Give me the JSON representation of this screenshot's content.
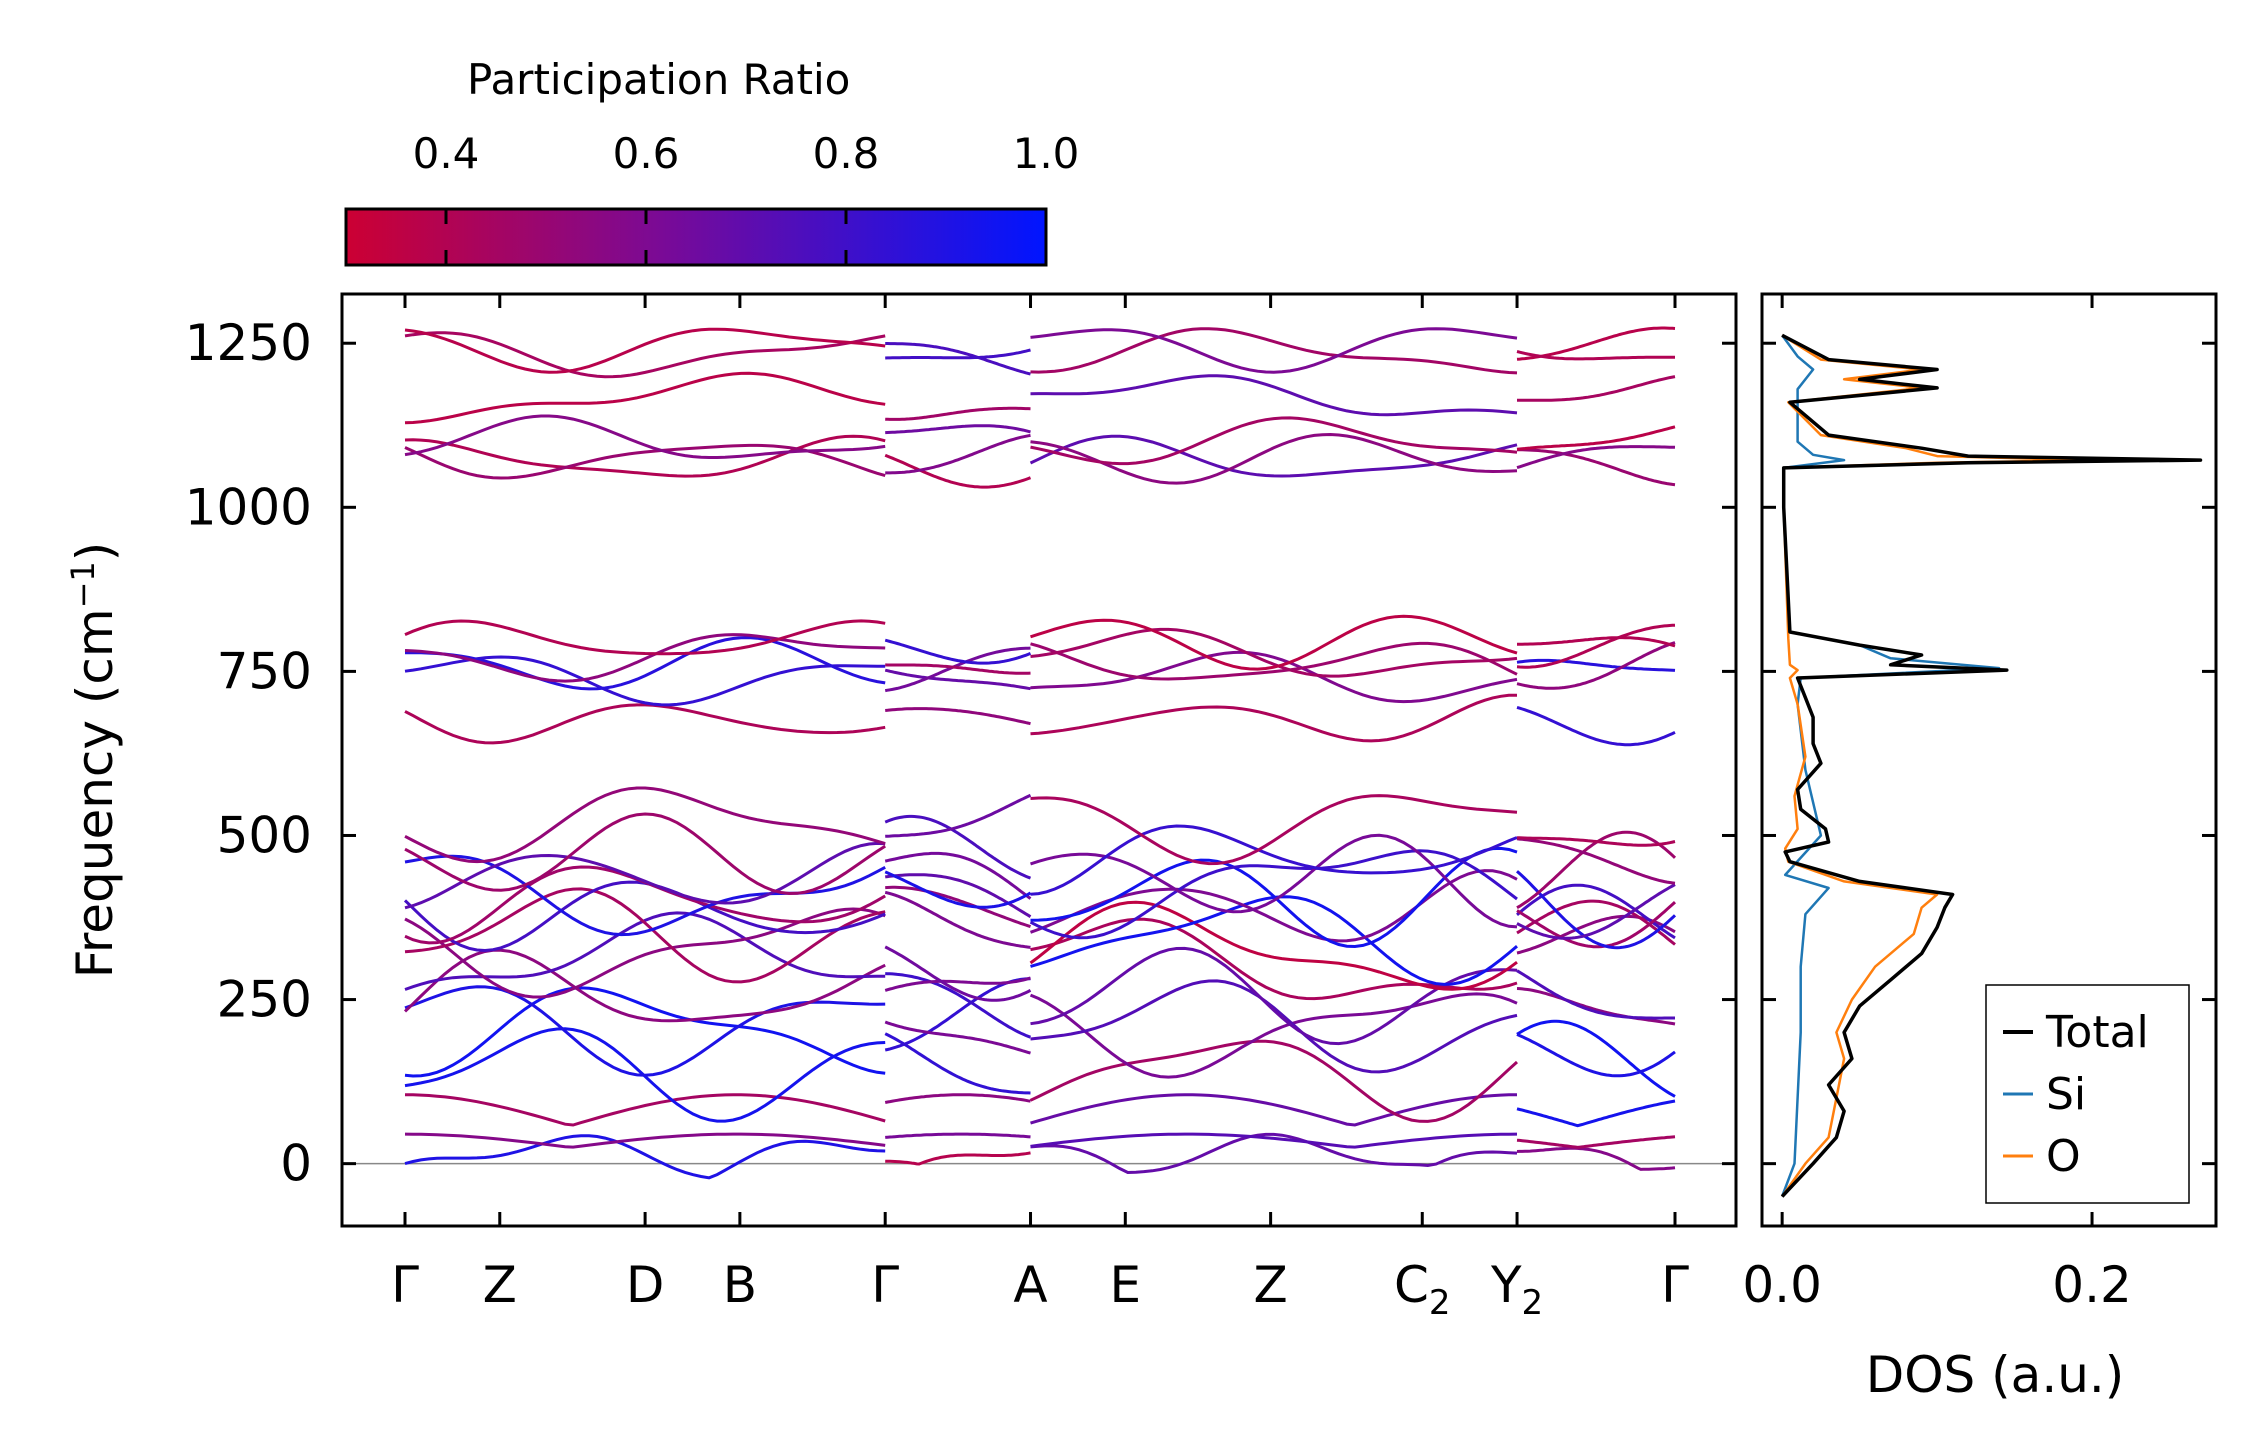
{
  "chart_data": [
    {
      "type": "line",
      "name": "phonon-band-structure",
      "ylabel": "Frequency (cm",
      "ylabel_sup": "−1",
      "ylabel_close": ")",
      "ylim": [
        -95,
        1325
      ],
      "yticks": [
        0,
        250,
        500,
        750,
        1000,
        1250
      ],
      "ytick_labels": [
        "0",
        "250",
        "500",
        "750",
        "1000",
        "1250"
      ],
      "xlim": [
        0,
        10.6
      ],
      "high_symmetry_points": [
        {
          "x": 0.0,
          "label": "Γ",
          "sub": ""
        },
        {
          "x": 0.75,
          "label": "Z",
          "sub": ""
        },
        {
          "x": 1.9,
          "label": "D",
          "sub": ""
        },
        {
          "x": 2.65,
          "label": "B",
          "sub": ""
        },
        {
          "x": 3.8,
          "label": "Γ",
          "sub": ""
        },
        {
          "x": 4.95,
          "label": "A",
          "sub": ""
        },
        {
          "x": 5.7,
          "label": "E",
          "sub": ""
        },
        {
          "x": 6.85,
          "label": "Z",
          "sub": ""
        },
        {
          "x": 8.05,
          "label": "C",
          "sub": "2"
        },
        {
          "x": 8.8,
          "label": "Y",
          "sub": "2"
        },
        {
          "x": 10.05,
          "label": "Γ",
          "sub": ""
        }
      ],
      "segments": [
        [
          0,
          3.8
        ],
        [
          3.8,
          4.95
        ],
        [
          4.95,
          8.8
        ],
        [
          8.8,
          10.05
        ]
      ],
      "band_endpoints_segment1": [
        0,
        45,
        105,
        140,
        205,
        210,
        255,
        305,
        325,
        350,
        385,
        405,
        420,
        435,
        470,
        520,
        675,
        740,
        760,
        775,
        795,
        1070,
        1075,
        1100,
        1165,
        1235,
        1245
      ],
      "colorbar": {
        "label": "Participation Ratio",
        "range": [
          0.3,
          1.0
        ],
        "ticks": [
          0.4,
          0.6,
          0.8,
          1.0
        ],
        "tick_labels": [
          "0.4",
          "0.6",
          "0.8",
          "1.0"
        ],
        "color_low": "#cc0033",
        "color_mid": "#7a0a96",
        "color_high": "#0015ff"
      },
      "zero_line_color": "#888888"
    },
    {
      "type": "line",
      "name": "density-of-states",
      "xlabel": "DOS (a.u.)",
      "xlim": [
        -0.013,
        0.28
      ],
      "xticks": [
        0.0,
        0.2
      ],
      "xtick_labels": [
        "0.0",
        "0.2"
      ],
      "series": [
        {
          "name": "Total",
          "color": "#000000",
          "y": [
            -50,
            0,
            40,
            80,
            120,
            160,
            200,
            240,
            280,
            320,
            360,
            390,
            410,
            430,
            460,
            475,
            490,
            510,
            540,
            570,
            610,
            640,
            680,
            710,
            740,
            752,
            760,
            775,
            790,
            810,
            1000,
            1060,
            1068,
            1072,
            1078,
            1090,
            1110,
            1160,
            1182,
            1195,
            1210,
            1225,
            1262
          ],
          "values": [
            0.0,
            0.02,
            0.035,
            0.04,
            0.03,
            0.045,
            0.04,
            0.05,
            0.07,
            0.09,
            0.1,
            0.105,
            0.11,
            0.05,
            0.005,
            0.002,
            0.03,
            0.028,
            0.012,
            0.01,
            0.025,
            0.02,
            0.02,
            0.015,
            0.01,
            0.145,
            0.07,
            0.09,
            0.05,
            0.005,
            0.001,
            0.001,
            0.12,
            0.27,
            0.12,
            0.09,
            0.03,
            0.005,
            0.1,
            0.05,
            0.1,
            0.03,
            0.0
          ]
        },
        {
          "name": "Si",
          "color": "#1f77b4",
          "y": [
            -50,
            0,
            100,
            200,
            300,
            380,
            420,
            440,
            500,
            600,
            700,
            740,
            755,
            770,
            790,
            810,
            1000,
            1060,
            1072,
            1080,
            1100,
            1180,
            1210,
            1230,
            1262
          ],
          "values": [
            0.0,
            0.008,
            0.01,
            0.012,
            0.012,
            0.015,
            0.03,
            0.002,
            0.025,
            0.015,
            0.01,
            0.012,
            0.14,
            0.07,
            0.05,
            0.005,
            0.001,
            0.001,
            0.04,
            0.02,
            0.01,
            0.01,
            0.02,
            0.01,
            0.0
          ]
        },
        {
          "name": "O",
          "color": "#ff7f0e",
          "y": [
            -50,
            0,
            40,
            100,
            160,
            200,
            250,
            300,
            350,
            390,
            410,
            430,
            460,
            480,
            510,
            560,
            620,
            700,
            740,
            752,
            760,
            800,
            1000,
            1060,
            1068,
            1072,
            1078,
            1090,
            1110,
            1160,
            1182,
            1195,
            1210,
            1225,
            1262
          ],
          "values": [
            0.0,
            0.015,
            0.03,
            0.035,
            0.04,
            0.035,
            0.045,
            0.06,
            0.085,
            0.09,
            0.1,
            0.04,
            0.004,
            0.002,
            0.01,
            0.008,
            0.015,
            0.01,
            0.005,
            0.01,
            0.005,
            0.004,
            0.001,
            0.001,
            0.1,
            0.2,
            0.1,
            0.08,
            0.025,
            0.004,
            0.09,
            0.04,
            0.09,
            0.025,
            0.0
          ]
        }
      ],
      "legend": {
        "placement": "lower-right",
        "entries": [
          "Total",
          "Si",
          "O"
        ]
      }
    }
  ]
}
